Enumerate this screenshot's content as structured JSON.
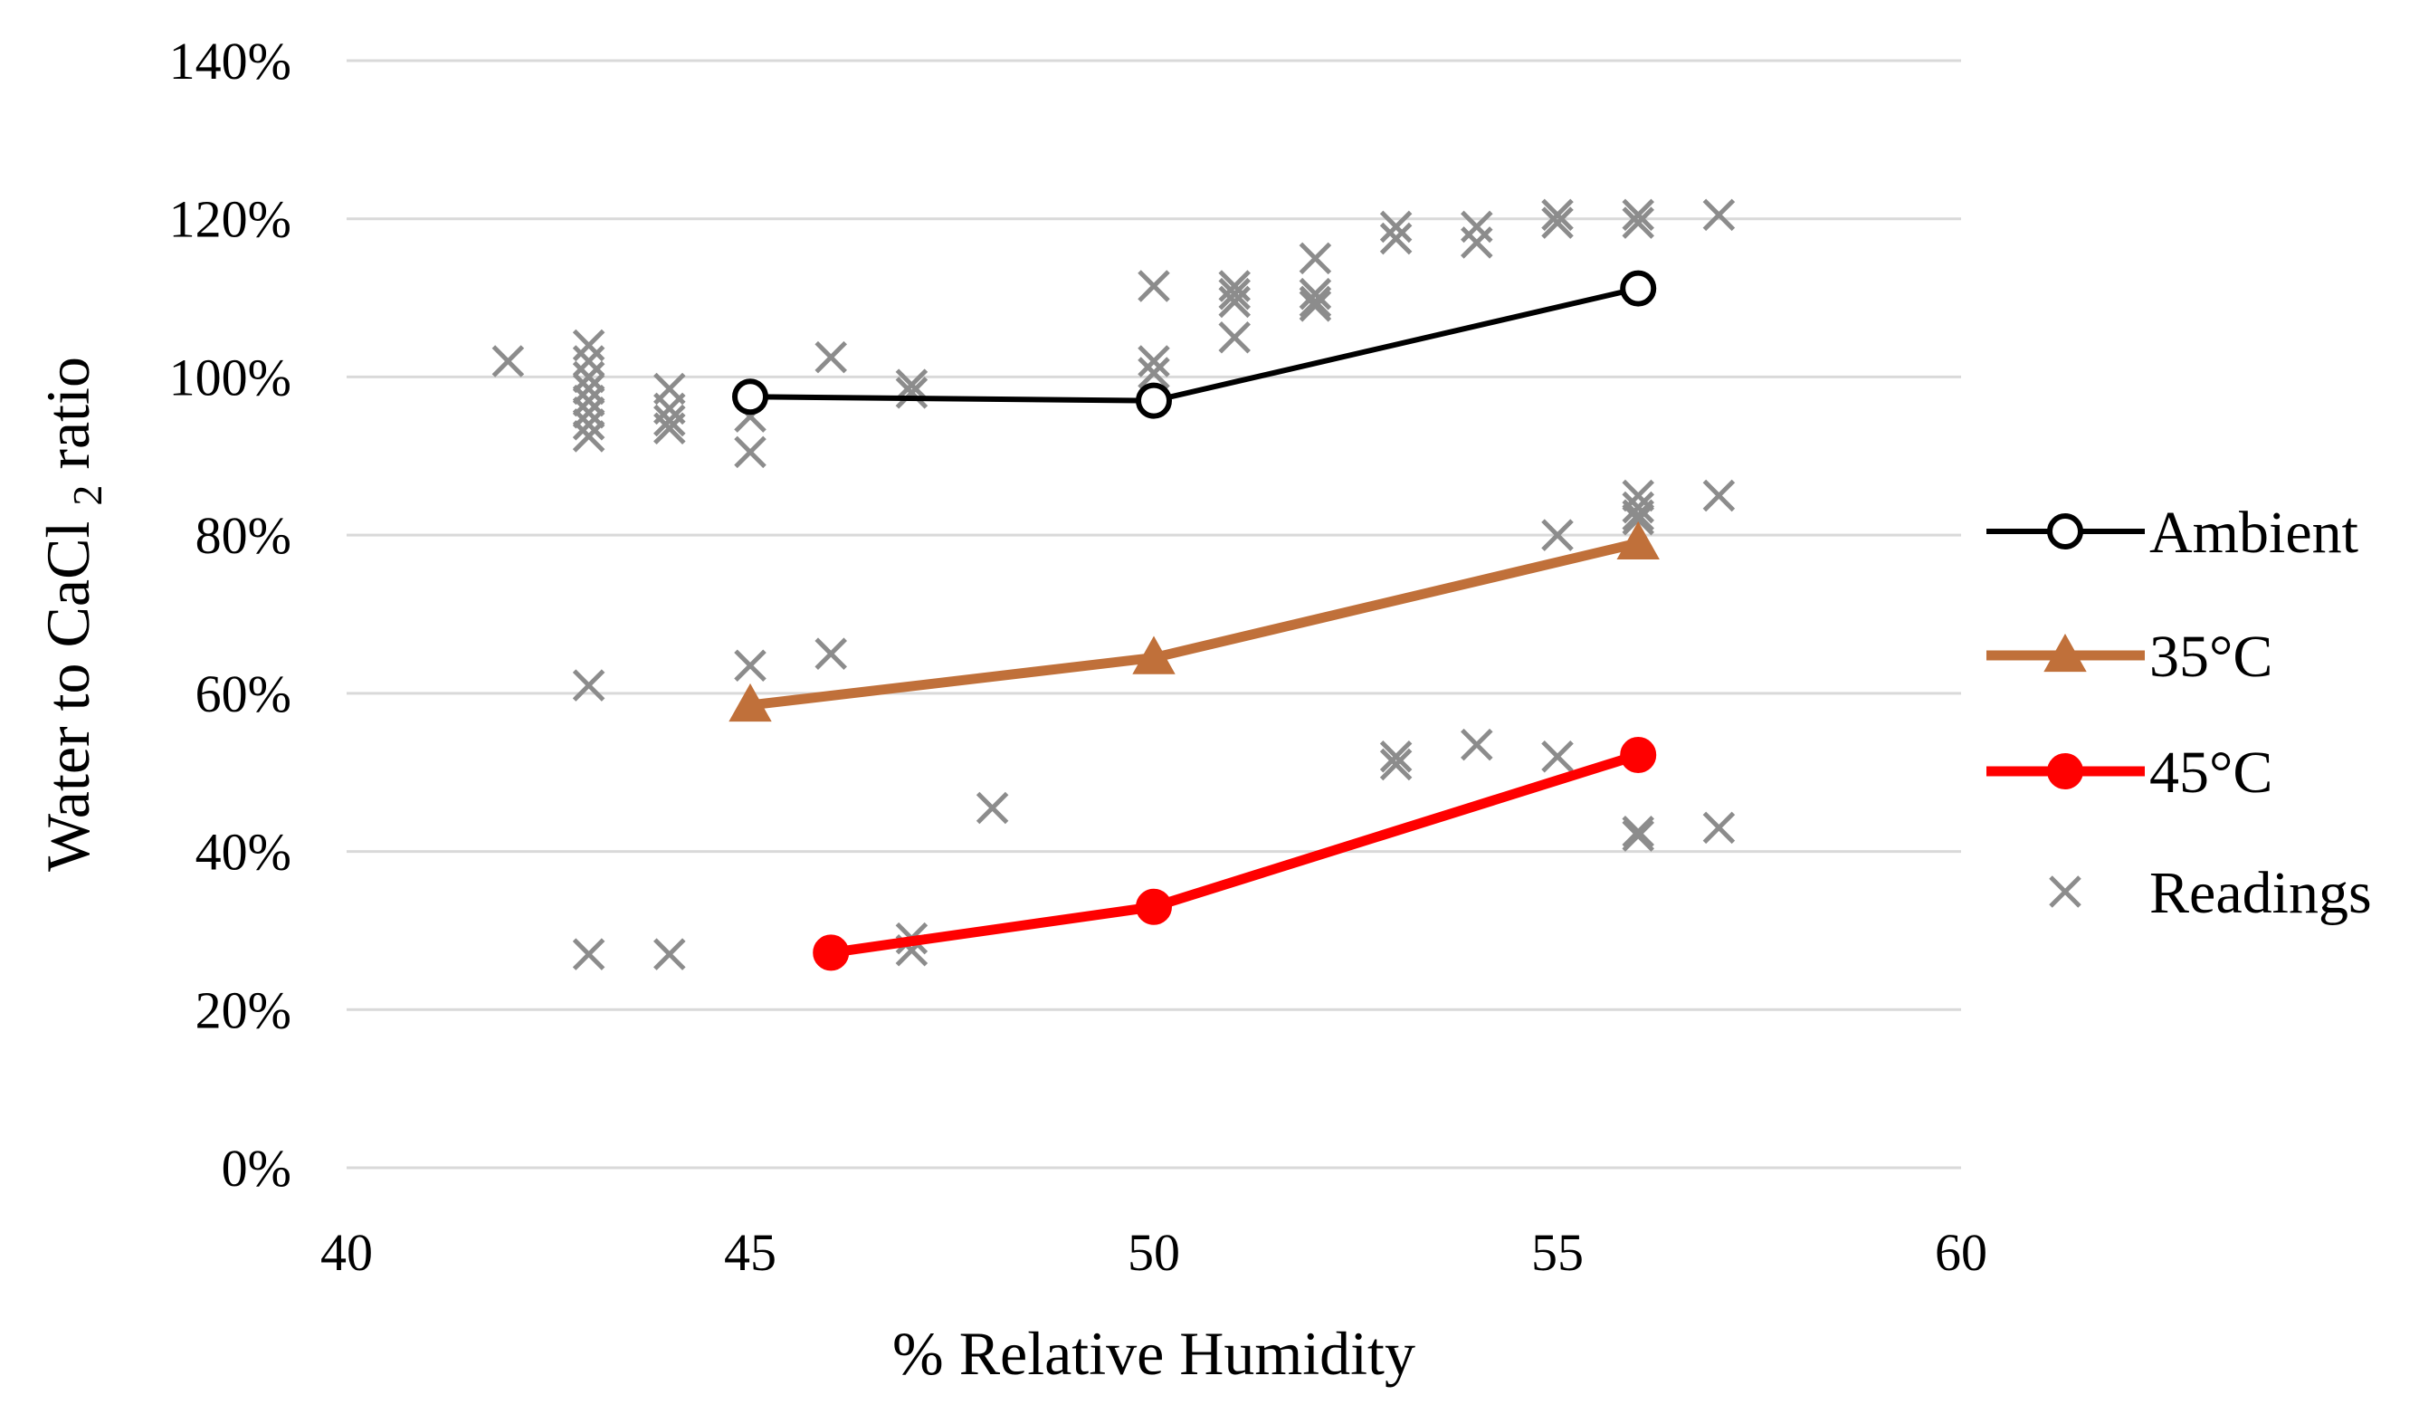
{
  "chart_data": {
    "type": "scatter",
    "title": "",
    "xlabel": "% Relative Humidity",
    "ylabel": {
      "prefix": "Water to CaCl",
      "subscript": "2",
      "suffix": " ratio"
    },
    "xlim": [
      40,
      60
    ],
    "ylim": [
      0,
      1.4
    ],
    "x_ticks": [
      40,
      45,
      50,
      55,
      60
    ],
    "x_tick_labels": [
      "40",
      "45",
      "50",
      "55",
      "60"
    ],
    "y_ticks": [
      0,
      0.2,
      0.4,
      0.6,
      0.8,
      1.0,
      1.2,
      1.4
    ],
    "y_tick_labels": [
      "0%",
      "20%",
      "40%",
      "60%",
      "80%",
      "100%",
      "120%",
      "140%"
    ],
    "gridlines": "horizontal",
    "legend_position": "right",
    "series": [
      {
        "name": "Ambient",
        "kind": "line",
        "marker": "circle-open",
        "color": "#000000",
        "x": [
          45,
          50,
          56
        ],
        "y": [
          0.975,
          0.97,
          1.112
        ]
      },
      {
        "name": "35°C",
        "kind": "line",
        "marker": "triangle",
        "color": "#C0703A",
        "x": [
          45,
          50,
          56
        ],
        "y": [
          0.585,
          0.645,
          0.79
        ]
      },
      {
        "name": "45°C",
        "kind": "line",
        "marker": "circle-filled",
        "color": "#FF0000",
        "x": [
          46,
          50,
          56
        ],
        "y": [
          0.272,
          0.33,
          0.522
        ]
      },
      {
        "name": "Readings",
        "kind": "scatter",
        "marker": "x",
        "color": "#8C8C8C",
        "x": [
          42,
          43,
          43,
          43,
          43,
          43,
          43,
          43,
          43,
          43,
          43,
          44,
          44,
          44,
          44,
          44,
          45,
          45,
          45,
          46,
          46,
          47,
          47,
          47,
          47,
          48,
          50,
          50,
          50,
          51,
          51,
          51,
          51,
          52,
          52,
          52,
          52,
          53,
          53,
          53,
          53,
          54,
          54,
          54,
          55,
          55,
          55,
          55,
          56,
          56,
          56,
          56,
          56,
          56,
          56,
          56,
          57,
          57,
          57
        ],
        "y": [
          1.02,
          1.04,
          1.02,
          1.0,
          0.985,
          0.97,
          0.955,
          0.94,
          0.925,
          0.61,
          0.27,
          0.985,
          0.96,
          0.945,
          0.935,
          0.27,
          0.95,
          0.905,
          0.635,
          1.025,
          0.65,
          0.275,
          0.99,
          0.98,
          0.29,
          0.455,
          1.115,
          1.02,
          1.005,
          1.115,
          1.105,
          1.095,
          1.05,
          1.15,
          1.105,
          1.09,
          1.095,
          1.19,
          1.175,
          0.52,
          0.51,
          1.19,
          1.17,
          0.535,
          1.205,
          1.195,
          0.8,
          0.52,
          1.205,
          1.195,
          0.85,
          0.835,
          0.825,
          0.82,
          0.425,
          0.42,
          1.205,
          0.85,
          0.43
        ]
      }
    ],
    "legend": [
      {
        "label": "Ambient"
      },
      {
        "label": "35°C"
      },
      {
        "label": "45°C"
      },
      {
        "label": "Readings"
      }
    ]
  }
}
